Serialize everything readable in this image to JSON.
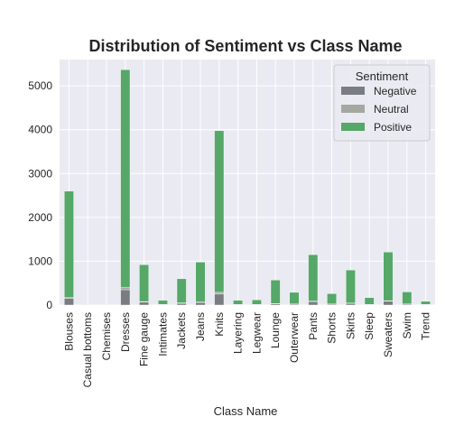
{
  "chart_data": {
    "type": "bar",
    "stacked": true,
    "title": "Distribution of Sentiment vs Class Name",
    "xlabel": "Class Name",
    "ylabel": "",
    "ylim": [
      0,
      5600
    ],
    "yticks": [
      0,
      1000,
      2000,
      3000,
      4000,
      5000
    ],
    "grid": true,
    "legend": {
      "title": "Sentiment",
      "placement": "top-right"
    },
    "categories": [
      "Blouses",
      "Casual bottoms",
      "Chemises",
      "Dresses",
      "Fine gauge",
      "Intimates",
      "Jackets",
      "Jeans",
      "Knits",
      "Layering",
      "Legwear",
      "Lounge",
      "Outerwear",
      "Pants",
      "Shorts",
      "Skirts",
      "Sleep",
      "Sweaters",
      "Swim",
      "Trend"
    ],
    "series": [
      {
        "name": "Negative",
        "color": "#797d82",
        "values": [
          150,
          0,
          0,
          350,
          70,
          10,
          40,
          60,
          250,
          10,
          10,
          30,
          20,
          80,
          20,
          40,
          10,
          90,
          20,
          10
        ]
      },
      {
        "name": "Neutral",
        "color": "#a4a8a0",
        "values": [
          20,
          0,
          0,
          50,
          10,
          5,
          10,
          10,
          40,
          5,
          5,
          5,
          5,
          10,
          5,
          5,
          5,
          10,
          5,
          5
        ]
      },
      {
        "name": "Positive",
        "color": "#55a868",
        "values": [
          2430,
          2,
          1,
          4970,
          840,
          95,
          550,
          910,
          3690,
          95,
          105,
          535,
          265,
          1060,
          235,
          755,
          155,
          1110,
          275,
          70
        ]
      }
    ]
  }
}
